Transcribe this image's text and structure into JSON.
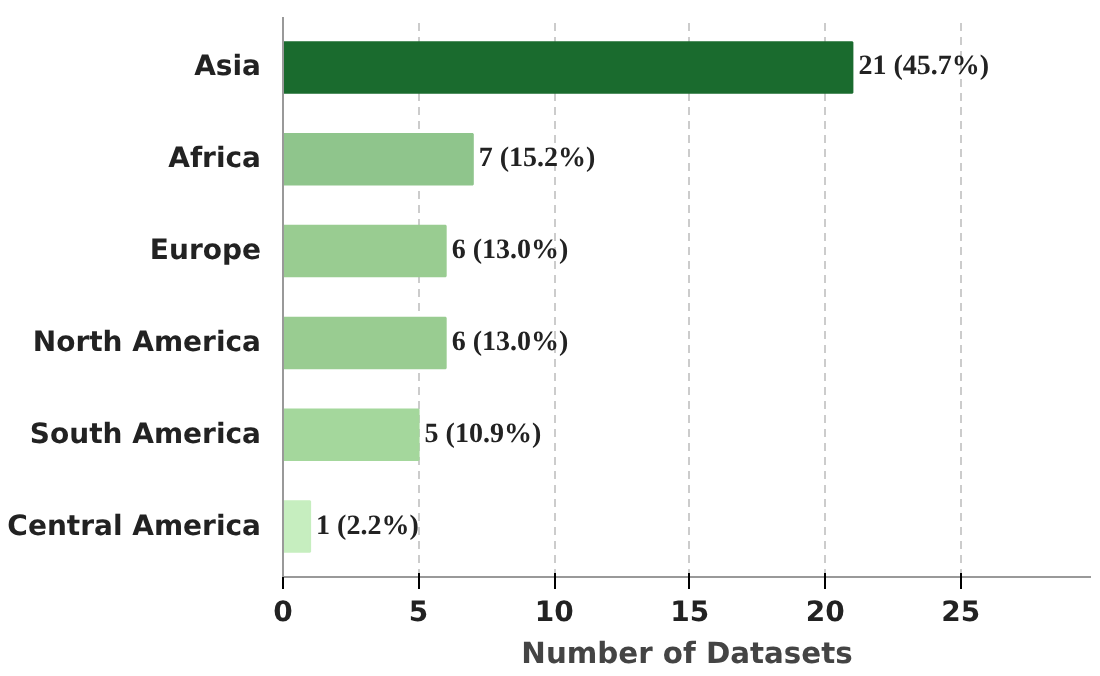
{
  "chart_data": {
    "type": "bar",
    "orientation": "horizontal",
    "xlabel": "Number of Datasets",
    "categories": [
      "Asia",
      "Africa",
      "Europe",
      "North America",
      "South America",
      "Central America"
    ],
    "values": [
      21,
      7,
      6,
      6,
      5,
      1
    ],
    "colors": [
      "#1a6b2e",
      "#8fc58c",
      "#99cc91",
      "#99cc91",
      "#a4d79c",
      "#c6eebf"
    ],
    "value_labels": [
      "21 (45.7%)",
      "7 (15.2%)",
      "6 (13.0%)",
      "6 (13.0%)",
      "5 (10.9%)",
      "1 (2.2%)"
    ],
    "xlim": [
      0,
      29.8
    ],
    "xticks": [
      0,
      5,
      10,
      15,
      20,
      25
    ],
    "grid": "x"
  }
}
